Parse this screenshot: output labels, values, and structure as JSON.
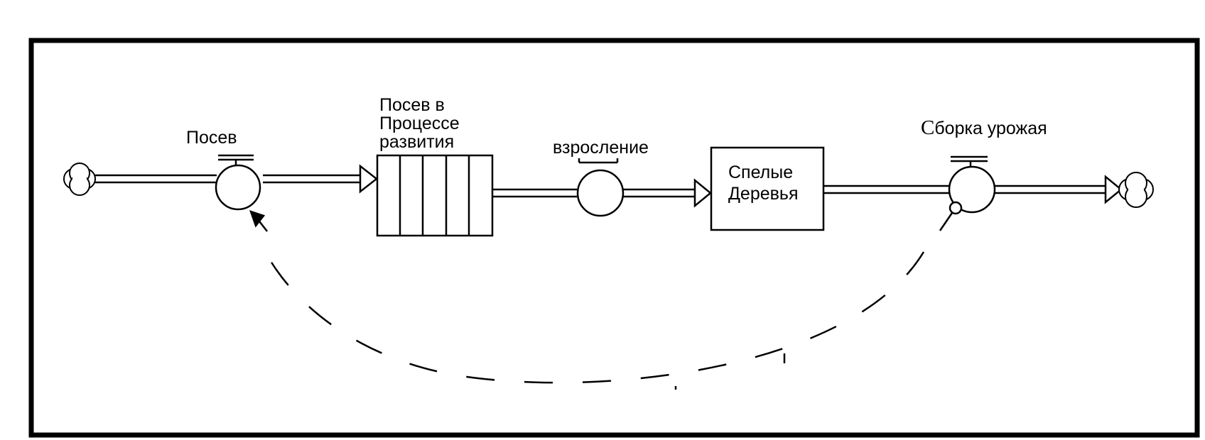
{
  "diagram": {
    "labels": {
      "sowing_flow": "Посев",
      "in_progress_stock": "Посев в\nПроцессе\nразвития",
      "maturation_flow": "взросление",
      "mature_trees_stock": "Спелые\nДеревья",
      "harvest_flow_first_letter": "С",
      "harvest_flow_rest": "борка урожая"
    },
    "colors": {
      "line": "#000000",
      "background": "#ffffff"
    }
  }
}
